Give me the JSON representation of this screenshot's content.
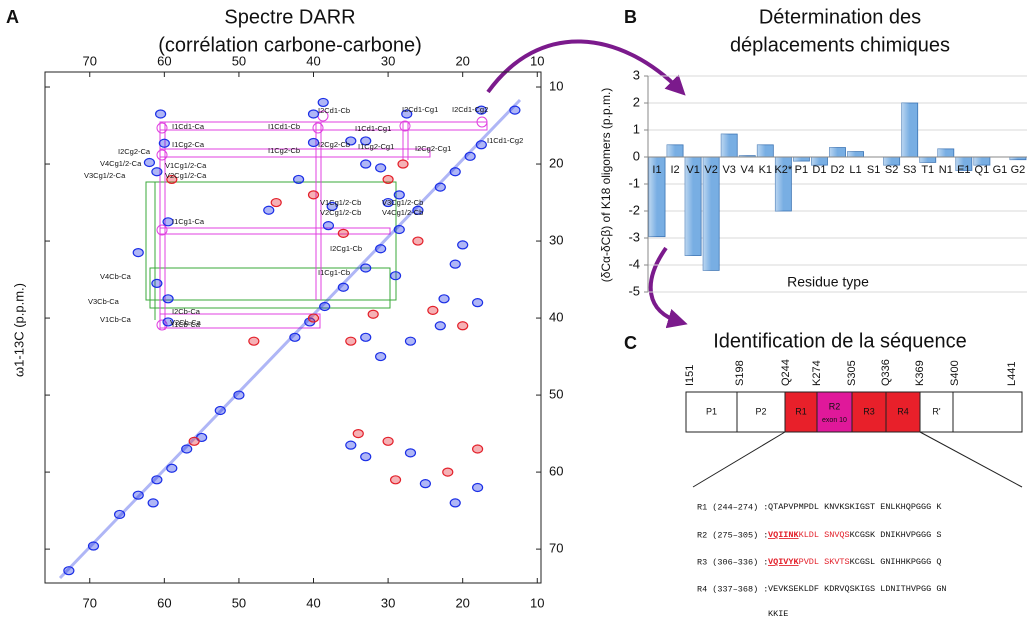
{
  "chart_data": [
    {
      "type": "scatter",
      "panel": "A",
      "title": "Spectre DARR",
      "subtitle": "(corrélation carbone-carbone)",
      "ylabel": "ω1-13C (p.p.m.)",
      "xlim": [
        76,
        9.5
      ],
      "ylim": [
        74.4,
        8.05
      ],
      "xticks": [
        70,
        60,
        50,
        40,
        30,
        20,
        10
      ],
      "yticks": [
        10,
        20,
        30,
        40,
        50,
        60,
        70
      ],
      "series": [
        {
          "color": "#1a2ee6",
          "x": [
            72.8,
            69.5,
            66,
            63.5,
            61,
            59,
            57,
            55,
            52.5,
            50,
            42.5,
            40.5,
            38.5,
            36,
            33,
            31,
            28.5,
            26,
            23,
            21,
            19,
            17.5,
            13,
            60.5,
            60,
            62,
            61,
            59.5,
            63.5,
            61,
            59.5,
            59.5,
            40,
            38.7,
            35,
            40,
            33,
            27.5,
            17.5,
            33,
            31,
            37.5,
            38,
            28.5,
            30,
            20,
            21,
            22.5,
            18,
            33,
            27,
            31,
            35,
            33,
            27,
            25,
            18,
            21,
            29,
            46,
            42,
            61.5,
            23
          ],
          "values": [
            72.8,
            69.6,
            65.5,
            63,
            61,
            59.5,
            57,
            55.5,
            52,
            50,
            42.5,
            40.5,
            38.5,
            36,
            33.5,
            31,
            28.5,
            26,
            23,
            21,
            19,
            17.5,
            13,
            13.5,
            17.3,
            19.8,
            21,
            27.5,
            31.5,
            35.5,
            37.5,
            40.5,
            13.5,
            12,
            17,
            17.2,
            17,
            13.5,
            13,
            20,
            20.5,
            25.5,
            28,
            24,
            25,
            30.5,
            33,
            37.5,
            38,
            42.5,
            43,
            45,
            56.5,
            58,
            57.5,
            61.5,
            62,
            64,
            34.5,
            26,
            22,
            64,
            41
          ]
        },
        {
          "color": "#e3202a",
          "x": [
            59,
            40,
            30,
            36,
            26,
            24,
            32,
            20,
            35,
            30,
            29,
            22,
            18,
            34,
            45,
            28,
            40,
            56,
            48
          ],
          "values": [
            22,
            24,
            22,
            29,
            30,
            39,
            39.5,
            41,
            43,
            56,
            61,
            60,
            57,
            55,
            25,
            20,
            40,
            56,
            43
          ]
        }
      ],
      "annotations": [
        "I1Cd1-Ca",
        "I1Cd1-Cb",
        "I2Cd1-Cb",
        "I2Cd1-Cg1",
        "I2Cd1-Cg2",
        "I1Cd1-Cg1",
        "I1Cd1-Cg2",
        "I2Cg2-Ca",
        "I1Cg2-Ca",
        "I1Cg2-Cb",
        "I2Cg2-Cb",
        "I1Cg2-Cg1",
        "I2Cg2-Cg1",
        "V4Cg1/2-Ca",
        "V1Cg1/2-Ca",
        "V3Cg1/2-Ca",
        "V2Cg1/2-Ca",
        "V1Cg1/2-Cb",
        "V2Cg1/2-Cb",
        "V3Cg1/2-Cb",
        "V4Cg1/2-Cb",
        "I1Cg1-Ca",
        "I2Cg1-Cb",
        "I1Cg1-Cb",
        "V4Cb-Ca",
        "V3Cb-Ca",
        "V1Cb-Ca",
        "V2Cb-Ca",
        "I2Cb-Ca",
        "I1Cb-Ca"
      ]
    },
    {
      "type": "bar",
      "panel": "B",
      "title": "Détermination des",
      "subtitle": "déplacements chimiques",
      "ylabel": "(δCα-δCβ) of K18 oligomers (p.p.m.)",
      "xlabel": "Residue type",
      "categories": [
        "I1",
        "I2",
        "V1",
        "V2",
        "V3",
        "V4",
        "K1",
        "K2*",
        "P1",
        "D1",
        "D2",
        "L1",
        "S1",
        "S2",
        "S3",
        "T1",
        "N1",
        "E1",
        "Q1",
        "G1",
        "G2"
      ],
      "values": [
        -2.95,
        0.45,
        -3.65,
        -4.2,
        0.85,
        0.05,
        0.45,
        -2.0,
        -0.15,
        -0.3,
        0.35,
        0.2,
        0,
        -0.3,
        2.0,
        -0.2,
        0.3,
        -0.5,
        -0.3,
        0,
        -0.1
      ],
      "color": "#78aee3",
      "grid": true,
      "ylim": [
        -5,
        3
      ],
      "yticks": [
        3,
        2,
        1,
        0,
        -1,
        -2,
        -3,
        -4,
        -5
      ]
    }
  ],
  "sequence_panel": {
    "panel": "C",
    "title": "Identification de la séquence",
    "residues": [
      "I151",
      "S198",
      "Q244",
      "K274",
      "S305",
      "Q336",
      "K369",
      "S400",
      "L441"
    ],
    "domains": [
      {
        "label": "P1",
        "color": "#ffffff"
      },
      {
        "label": "P2",
        "color": "#ffffff"
      },
      {
        "label": "R1",
        "color": "#e8202a"
      },
      {
        "label": "R2",
        "note": "exon 10",
        "color": "#e0189a"
      },
      {
        "label": "R3",
        "color": "#e8202a"
      },
      {
        "label": "R4",
        "color": "#e8202a"
      },
      {
        "label": "R'",
        "color": "#ffffff"
      }
    ],
    "rows": [
      {
        "name": "R1 (244–274) :",
        "parts": [
          {
            "text": "QTAPVPMPDL KNVKSKIGST ENLKHQPGGG K",
            "style": "plain"
          }
        ]
      },
      {
        "name": "R2 (275–305) :",
        "parts": [
          {
            "text": "VQIINK",
            "style": "motif"
          },
          {
            "text": "KLDL SNVQS",
            "style": "red"
          },
          {
            "text": "KCGSK DNIKHVPGGG S",
            "style": "plain"
          }
        ]
      },
      {
        "name": "R3 (306–336) :",
        "parts": [
          {
            "text": "VQIVYK",
            "style": "motif"
          },
          {
            "text": "PVDL SKVTS",
            "style": "red"
          },
          {
            "text": "KCGSL GNIHHKPGGG Q",
            "style": "plain"
          }
        ]
      },
      {
        "name": "R4 (337–368) :",
        "parts": [
          {
            "text": "VEVKSEKLDF KDRVQSKIGS LDNITHVPGG GN",
            "style": "plain"
          }
        ]
      },
      {
        "parts": [
          {
            "text": "KKIE",
            "style": "plain"
          }
        ]
      }
    ]
  }
}
